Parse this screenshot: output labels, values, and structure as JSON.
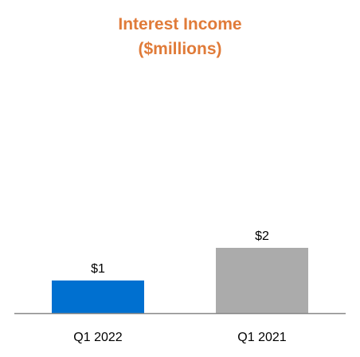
{
  "chart_data": {
    "type": "bar",
    "title": "Interest Income",
    "subtitle": "($millions)",
    "categories": [
      "Q1 2022",
      "Q1 2021"
    ],
    "values": [
      1,
      2
    ],
    "data_labels": [
      "$1",
      "$2"
    ],
    "xlabel": "",
    "ylabel": "",
    "ylim": [
      0,
      4
    ],
    "grid": false,
    "legend": "none",
    "colors": [
      "#0070D0",
      "#ABABAB"
    ],
    "axis_color": "#888888",
    "title_color": "#E07B39"
  }
}
